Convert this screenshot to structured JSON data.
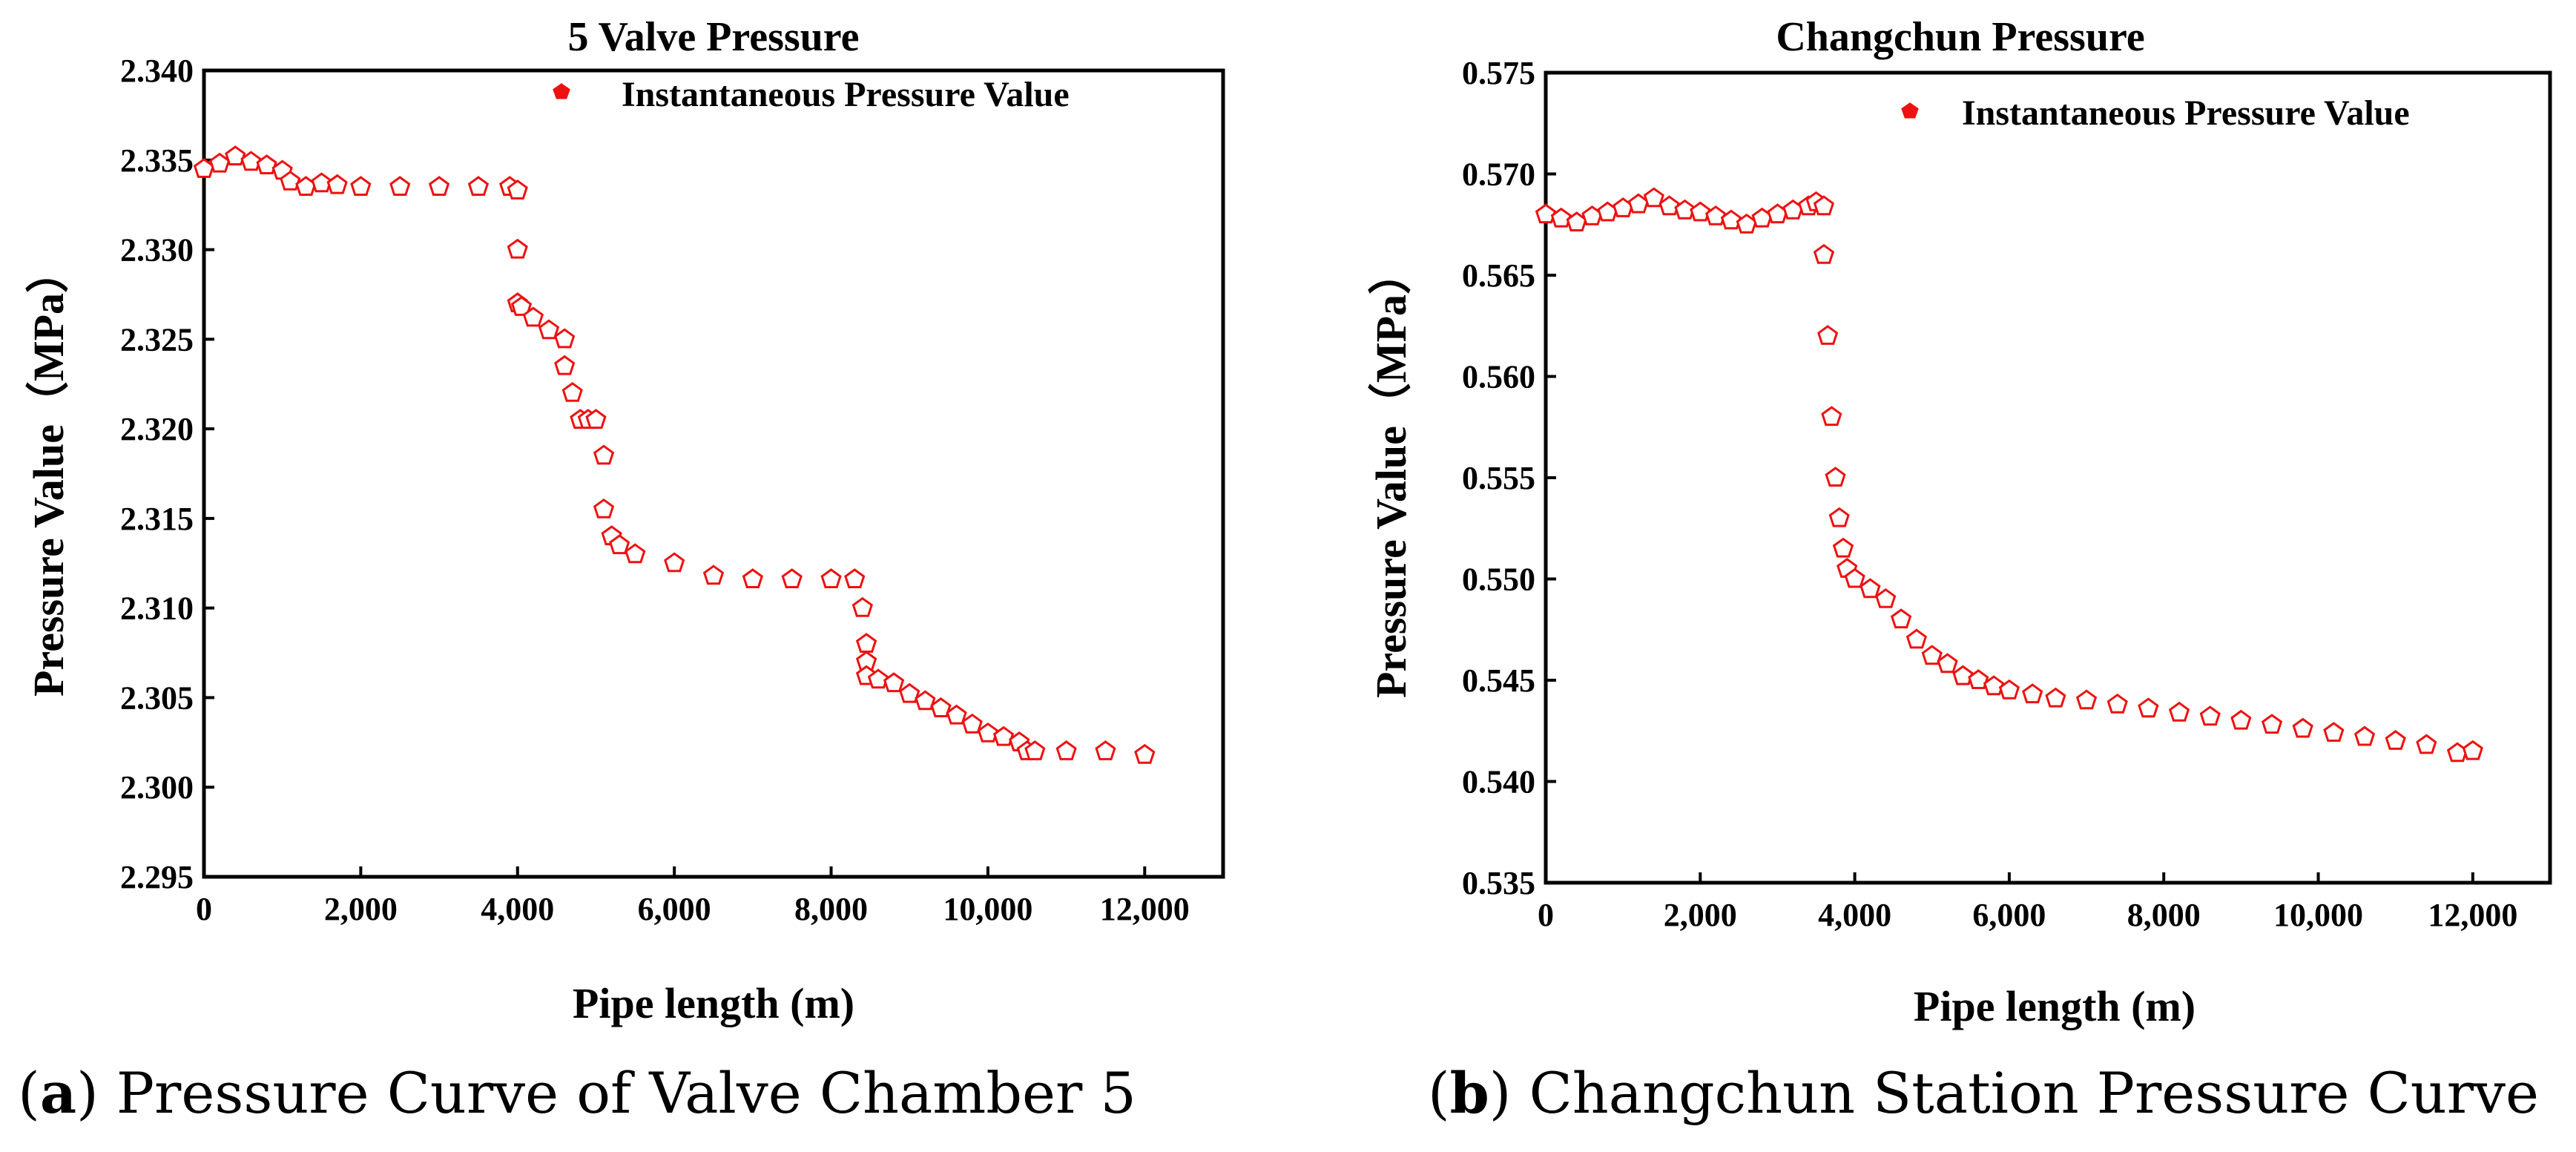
{
  "chart_data": [
    {
      "type": "scatter",
      "title": "5 Valve Pressure",
      "xlabel": "Pipe length (m)",
      "ylabel": "Pressure Value（MPa）",
      "xlim": [
        0,
        13000
      ],
      "ylim": [
        2.295,
        2.34
      ],
      "x_ticks": [
        0,
        2000,
        4000,
        6000,
        8000,
        10000,
        12000
      ],
      "x_tick_labels": [
        "0",
        "2,000",
        "4,000",
        "6,000",
        "8,000",
        "10,000",
        "12,000"
      ],
      "y_ticks": [
        2.295,
        2.3,
        2.305,
        2.31,
        2.315,
        2.32,
        2.325,
        2.33,
        2.335,
        2.34
      ],
      "y_tick_labels": [
        "2.295",
        "2.300",
        "2.305",
        "2.310",
        "2.315",
        "2.320",
        "2.325",
        "2.330",
        "2.335",
        "2.340"
      ],
      "grid": false,
      "legend_position": "top-right",
      "marker_color": "#ee1111",
      "marker": "open-pentagon",
      "series": [
        {
          "name": "Instantaneous Pressure Value",
          "x": [
            0,
            200,
            400,
            600,
            800,
            1000,
            1100,
            1300,
            1500,
            1700,
            2000,
            2500,
            3000,
            3500,
            3900,
            4000,
            4000,
            4000,
            4050,
            4200,
            4400,
            4600,
            4600,
            4700,
            4800,
            4900,
            5000,
            5100,
            5100,
            5200,
            5300,
            5500,
            6000,
            6500,
            7000,
            7500,
            8000,
            8300,
            8400,
            8450,
            8450,
            8450,
            8600,
            8800,
            9000,
            9200,
            9400,
            9600,
            9800,
            10000,
            10200,
            10400,
            10500,
            10600,
            11000,
            11500,
            12000
          ],
          "y": [
            2.3345,
            2.3348,
            2.3352,
            2.3349,
            2.3347,
            2.3344,
            2.3338,
            2.3335,
            2.3337,
            2.3336,
            2.3335,
            2.3335,
            2.3335,
            2.3335,
            2.3335,
            2.3333,
            2.33,
            2.327,
            2.3268,
            2.3262,
            2.3255,
            2.325,
            2.3235,
            2.322,
            2.3205,
            2.3205,
            2.3205,
            2.3185,
            2.3155,
            2.314,
            2.3135,
            2.313,
            2.3125,
            2.3118,
            2.3116,
            2.3116,
            2.3116,
            2.3116,
            2.31,
            2.308,
            2.307,
            2.3062,
            2.306,
            2.3058,
            2.3052,
            2.3048,
            2.3044,
            2.304,
            2.3035,
            2.303,
            2.3028,
            2.3025,
            2.302,
            2.302,
            2.302,
            2.302,
            2.3018
          ]
        }
      ]
    },
    {
      "type": "scatter",
      "title": "Changchun Pressure",
      "xlabel": "Pipe length (m)",
      "ylabel": "Pressure Value（MPa）",
      "xlim": [
        0,
        13000
      ],
      "ylim": [
        0.535,
        0.575
      ],
      "x_ticks": [
        0,
        2000,
        4000,
        6000,
        8000,
        10000,
        12000
      ],
      "x_tick_labels": [
        "0",
        "2,000",
        "4,000",
        "6,000",
        "8,000",
        "10,000",
        "12,000"
      ],
      "y_ticks": [
        0.535,
        0.54,
        0.545,
        0.55,
        0.555,
        0.56,
        0.565,
        0.57,
        0.575
      ],
      "y_tick_labels": [
        "0.535",
        "0.540",
        "0.545",
        "0.550",
        "0.555",
        "0.560",
        "0.565",
        "0.570",
        "0.575"
      ],
      "grid": false,
      "legend_position": "top-right",
      "marker_color": "#ee1111",
      "marker": "open-pentagon",
      "series": [
        {
          "name": "Instantaneous Pressure Value",
          "x": [
            0,
            200,
            400,
            600,
            800,
            1000,
            1200,
            1400,
            1600,
            1800,
            2000,
            2200,
            2400,
            2600,
            2800,
            3000,
            3200,
            3400,
            3500,
            3600,
            3600,
            3650,
            3700,
            3750,
            3800,
            3850,
            3900,
            4000,
            4200,
            4400,
            4600,
            4800,
            5000,
            5200,
            5400,
            5600,
            5800,
            6000,
            6300,
            6600,
            7000,
            7400,
            7800,
            8200,
            8600,
            9000,
            9400,
            9800,
            10200,
            10600,
            11000,
            11400,
            11800,
            12000
          ],
          "y": [
            0.568,
            0.5678,
            0.5676,
            0.5679,
            0.5681,
            0.5683,
            0.5685,
            0.5688,
            0.5684,
            0.5682,
            0.5681,
            0.5679,
            0.5677,
            0.5675,
            0.5678,
            0.568,
            0.5682,
            0.5684,
            0.5686,
            0.5684,
            0.566,
            0.562,
            0.558,
            0.555,
            0.553,
            0.5515,
            0.5505,
            0.55,
            0.5495,
            0.549,
            0.548,
            0.547,
            0.5462,
            0.5458,
            0.5452,
            0.545,
            0.5447,
            0.5445,
            0.5443,
            0.5441,
            0.544,
            0.5438,
            0.5436,
            0.5434,
            0.5432,
            0.543,
            0.5428,
            0.5426,
            0.5424,
            0.5422,
            0.542,
            0.5418,
            0.5414,
            0.5415
          ]
        }
      ]
    }
  ],
  "captions": [
    {
      "letter": "a",
      "text": ") Pressure Curve of Valve Chamber 5",
      "prefix": "("
    },
    {
      "letter": "b",
      "text": ") Changchun Station Pressure Curve",
      "prefix": "("
    }
  ]
}
